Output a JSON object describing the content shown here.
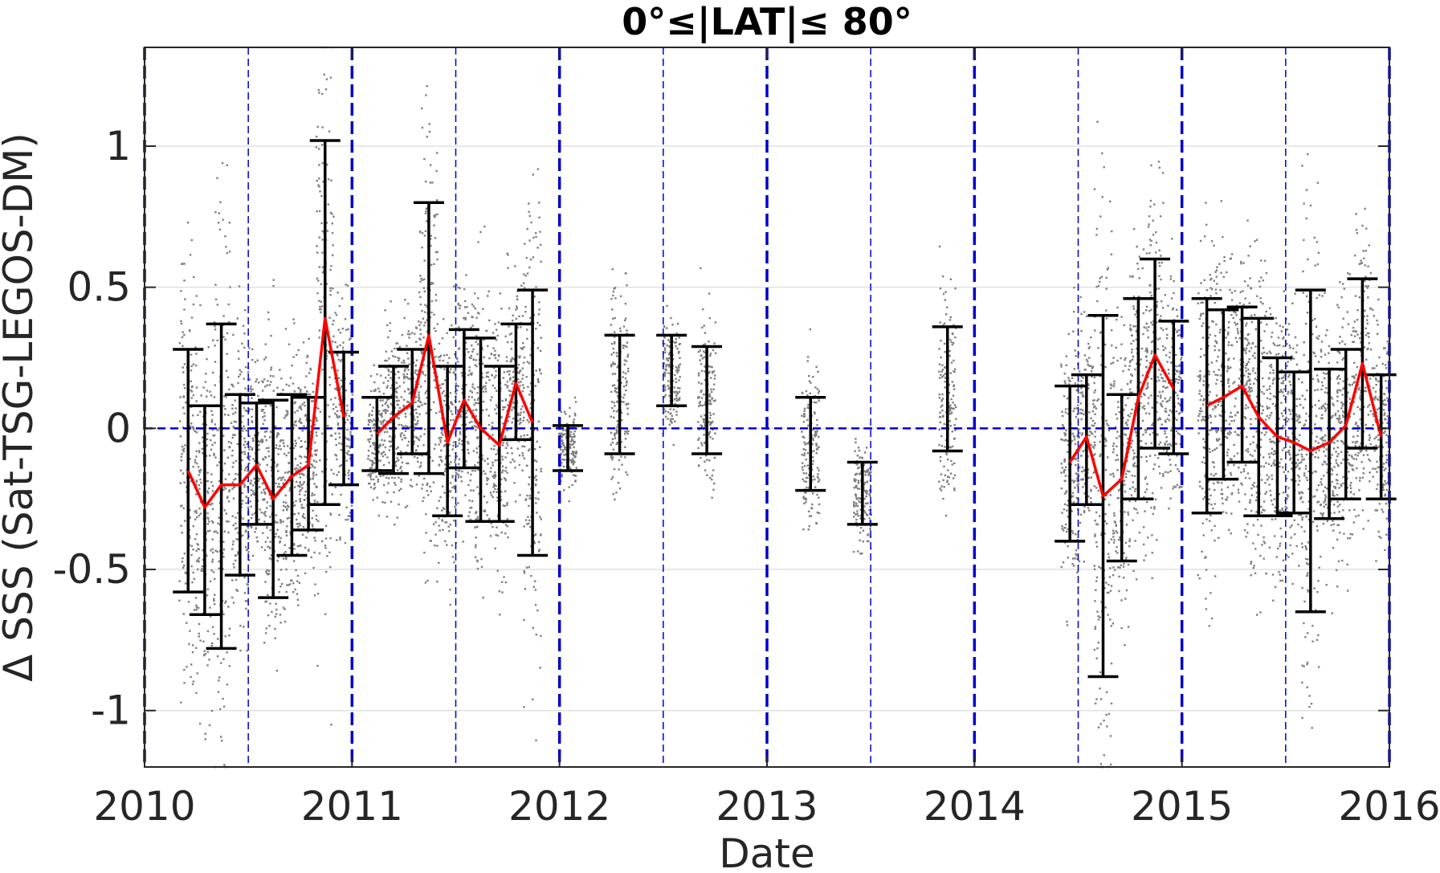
{
  "chart_data": {
    "type": "scatter",
    "title": "0°≤|LAT|≤ 80°",
    "xlabel": "Date",
    "ylabel": "Δ SSS (Sat-TSG-LEGOS-DM)",
    "xlim": [
      2010,
      2016
    ],
    "ylim": [
      -1.2,
      1.35
    ],
    "x_ticks": [
      2010,
      2011,
      2012,
      2013,
      2014,
      2015,
      2016
    ],
    "x_tick_labels": [
      "2010",
      "2011",
      "2012",
      "2013",
      "2014",
      "2015",
      "2016"
    ],
    "y_ticks": [
      -1,
      -0.5,
      0,
      0.5,
      1
    ],
    "y_tick_labels": [
      "-1",
      "-0.5",
      "0",
      "0.5",
      "1"
    ],
    "grid": "horizontal",
    "colors": {
      "points": "#808080",
      "mean_line": "#ff0000",
      "error_bars": "#000000",
      "reference": "#0000cd"
    },
    "year_boundaries": [
      2010,
      2011,
      2012,
      2013,
      2014,
      2015,
      2016
    ],
    "mid_year_lines": [
      2010.5,
      2011.5,
      2012.5,
      2013.5,
      2014.5,
      2015.5
    ],
    "zero_line": 0,
    "error_bars": [
      {
        "x": 2010.21,
        "low": -0.58,
        "high": 0.28
      },
      {
        "x": 2010.29,
        "low": -0.66,
        "high": 0.08
      },
      {
        "x": 2010.37,
        "low": -0.78,
        "high": 0.37
      },
      {
        "x": 2010.46,
        "low": -0.52,
        "high": 0.12
      },
      {
        "x": 2010.54,
        "low": -0.34,
        "high": 0.09
      },
      {
        "x": 2010.62,
        "low": -0.6,
        "high": 0.1
      },
      {
        "x": 2010.71,
        "low": -0.45,
        "high": 0.12
      },
      {
        "x": 2010.79,
        "low": -0.36,
        "high": 0.11
      },
      {
        "x": 2010.87,
        "low": -0.27,
        "high": 1.02
      },
      {
        "x": 2010.96,
        "low": -0.2,
        "high": 0.27
      },
      {
        "x": 2011.12,
        "low": -0.15,
        "high": 0.11
      },
      {
        "x": 2011.2,
        "low": -0.16,
        "high": 0.22
      },
      {
        "x": 2011.29,
        "low": -0.09,
        "high": 0.28
      },
      {
        "x": 2011.37,
        "low": -0.16,
        "high": 0.8
      },
      {
        "x": 2011.46,
        "low": -0.31,
        "high": 0.22
      },
      {
        "x": 2011.54,
        "low": -0.14,
        "high": 0.35
      },
      {
        "x": 2011.62,
        "low": -0.33,
        "high": 0.32
      },
      {
        "x": 2011.71,
        "low": -0.33,
        "high": 0.22
      },
      {
        "x": 2011.79,
        "low": -0.04,
        "high": 0.37
      },
      {
        "x": 2011.87,
        "low": -0.45,
        "high": 0.49
      },
      {
        "x": 2012.04,
        "low": -0.15,
        "high": 0.01
      },
      {
        "x": 2012.29,
        "low": -0.09,
        "high": 0.33
      },
      {
        "x": 2012.54,
        "low": 0.08,
        "high": 0.33
      },
      {
        "x": 2012.71,
        "low": -0.09,
        "high": 0.29
      },
      {
        "x": 2013.21,
        "low": -0.22,
        "high": 0.11
      },
      {
        "x": 2013.46,
        "low": -0.34,
        "high": -0.12
      },
      {
        "x": 2013.87,
        "low": -0.08,
        "high": 0.36
      },
      {
        "x": 2014.46,
        "low": -0.4,
        "high": 0.15
      },
      {
        "x": 2014.54,
        "low": -0.27,
        "high": 0.19
      },
      {
        "x": 2014.62,
        "low": -0.88,
        "high": 0.4
      },
      {
        "x": 2014.71,
        "low": -0.47,
        "high": 0.12
      },
      {
        "x": 2014.79,
        "low": -0.25,
        "high": 0.46
      },
      {
        "x": 2014.87,
        "low": -0.07,
        "high": 0.6
      },
      {
        "x": 2014.96,
        "low": -0.09,
        "high": 0.38
      },
      {
        "x": 2015.12,
        "low": -0.3,
        "high": 0.46
      },
      {
        "x": 2015.2,
        "low": -0.18,
        "high": 0.42
      },
      {
        "x": 2015.29,
        "low": -0.12,
        "high": 0.43
      },
      {
        "x": 2015.37,
        "low": -0.31,
        "high": 0.39
      },
      {
        "x": 2015.46,
        "low": -0.31,
        "high": 0.25
      },
      {
        "x": 2015.54,
        "low": -0.3,
        "high": 0.2
      },
      {
        "x": 2015.62,
        "low": -0.65,
        "high": 0.49
      },
      {
        "x": 2015.71,
        "low": -0.32,
        "high": 0.21
      },
      {
        "x": 2015.79,
        "low": -0.25,
        "high": 0.28
      },
      {
        "x": 2015.87,
        "low": -0.07,
        "high": 0.53
      },
      {
        "x": 2015.96,
        "low": -0.25,
        "high": 0.19
      }
    ],
    "series": [
      {
        "x": [
          2010.21,
          2010.29,
          2010.37,
          2010.46,
          2010.54,
          2010.62,
          2010.71,
          2010.79,
          2010.87,
          2010.96
        ],
        "y": [
          -0.15,
          -0.28,
          -0.2,
          -0.2,
          -0.13,
          -0.25,
          -0.17,
          -0.13,
          0.39,
          0.04
        ]
      },
      {
        "x": [
          2011.12,
          2011.2,
          2011.29,
          2011.37,
          2011.46,
          2011.54,
          2011.62,
          2011.71,
          2011.79,
          2011.87
        ],
        "y": [
          -0.02,
          0.04,
          0.09,
          0.33,
          -0.05,
          0.1,
          0.0,
          -0.06,
          0.16,
          0.02
        ]
      },
      {
        "x": [
          2014.46,
          2014.54,
          2014.62,
          2014.71,
          2014.79,
          2014.87,
          2014.96
        ],
        "y": [
          -0.12,
          -0.03,
          -0.24,
          -0.18,
          0.11,
          0.26,
          0.14
        ]
      },
      {
        "x": [
          2015.12,
          2015.2,
          2015.29,
          2015.37,
          2015.46,
          2015.54,
          2015.62,
          2015.71,
          2015.79,
          2015.87,
          2015.96
        ],
        "y": [
          0.08,
          0.11,
          0.15,
          0.04,
          -0.03,
          -0.05,
          -0.08,
          -0.05,
          0.01,
          0.23,
          -0.03
        ]
      }
    ]
  }
}
